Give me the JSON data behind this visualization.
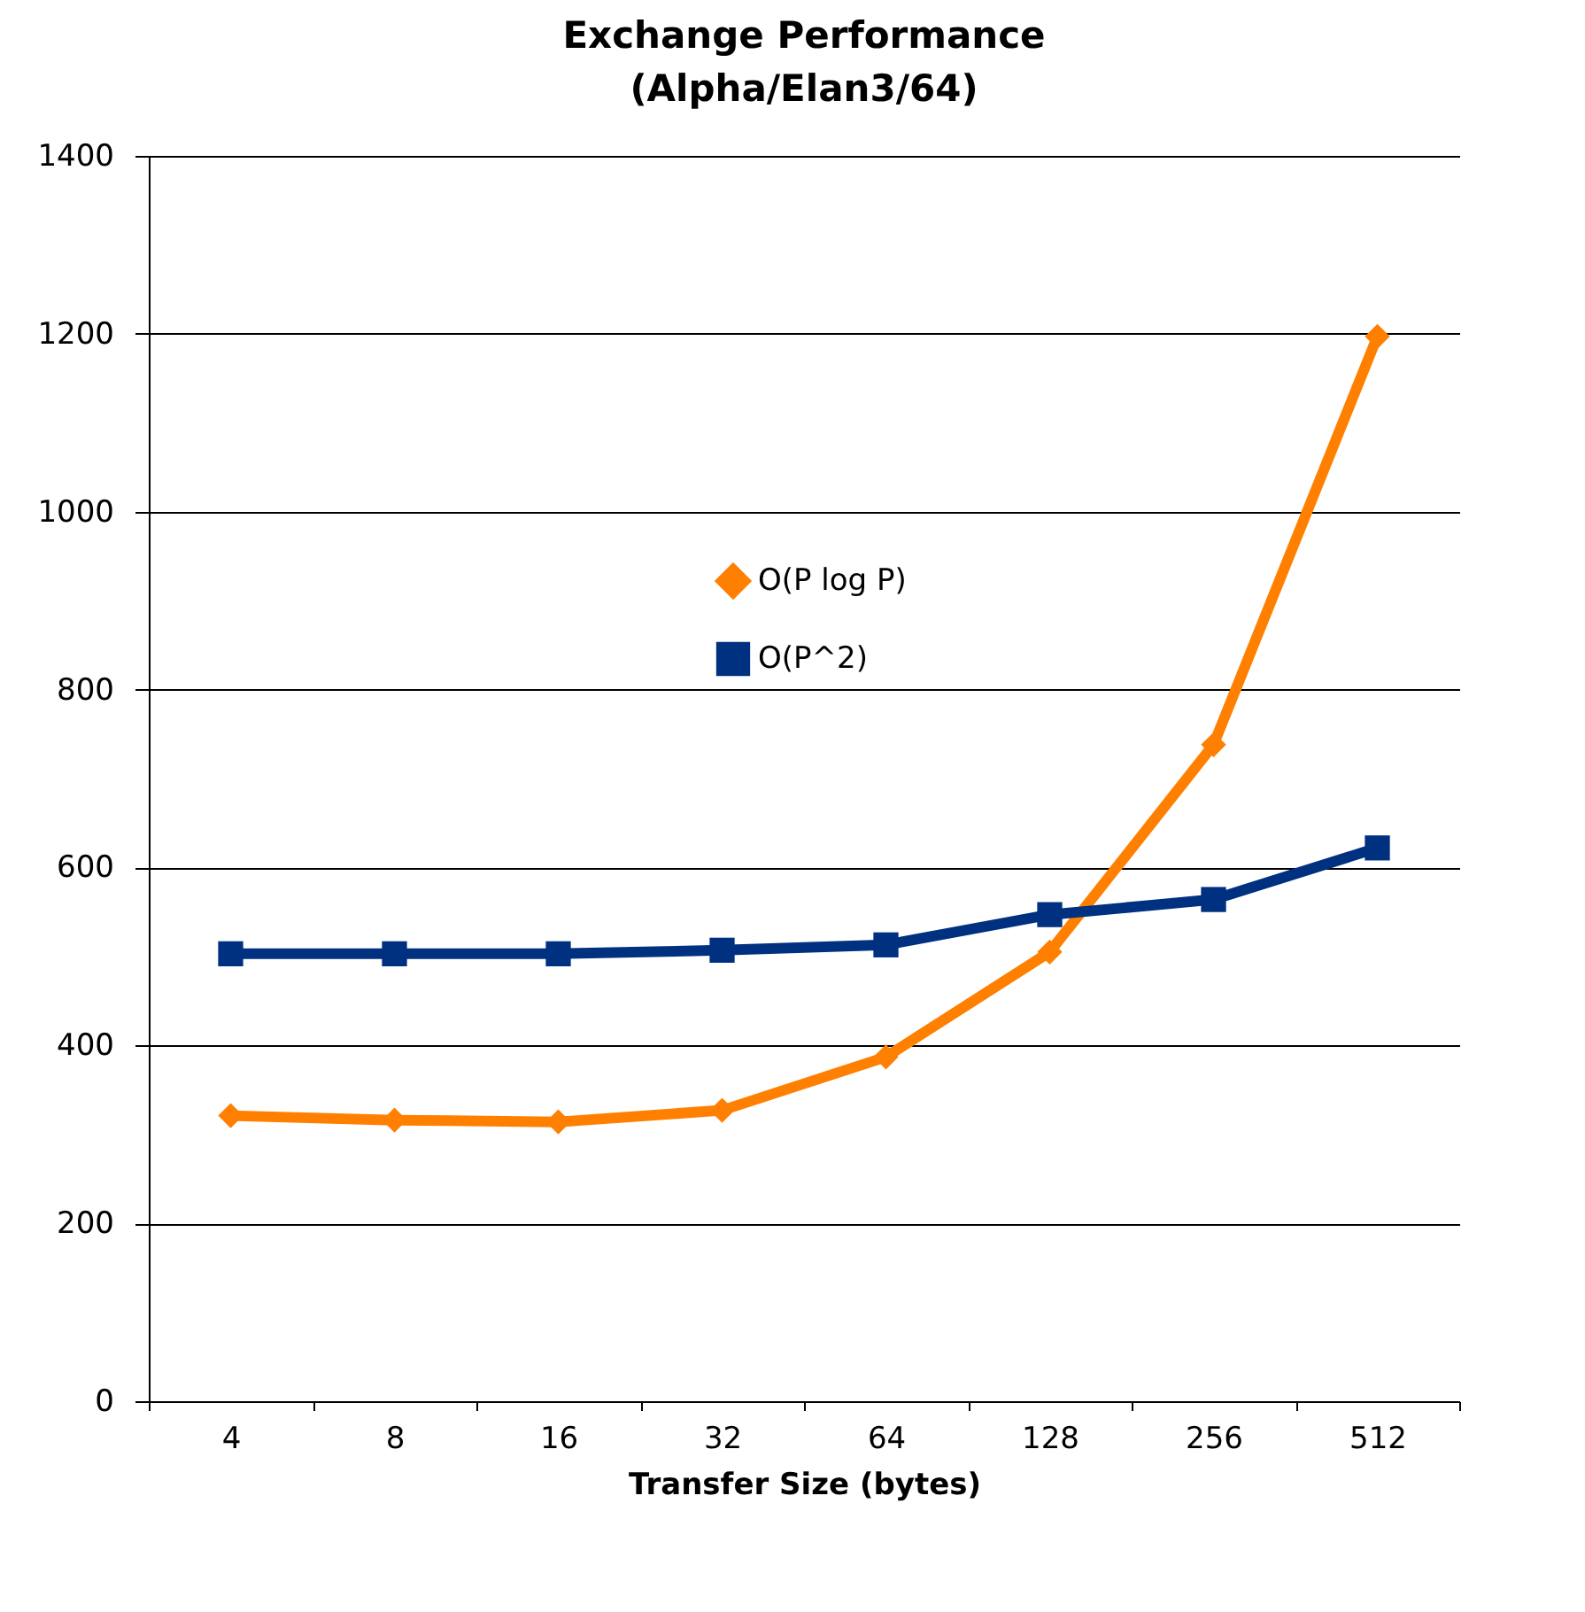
{
  "chart_data": {
    "type": "line",
    "title": [
      "Exchange Performance",
      "(Alpha/Elan3/64)"
    ],
    "xlabel": "Transfer Size (bytes)",
    "categories": [
      "4",
      "8",
      "16",
      "32",
      "64",
      "128",
      "256",
      "512"
    ],
    "series": [
      {
        "name": "O(P log P)",
        "color": "#ff8000",
        "marker": "diamond",
        "values": [
          321,
          316,
          314,
          327,
          387,
          505,
          738,
          1197
        ]
      },
      {
        "name": "O(P^2)",
        "color": "#003080",
        "marker": "square",
        "values": [
          503,
          503,
          503,
          507,
          513,
          547,
          564,
          622
        ]
      }
    ],
    "ylim": [
      0,
      1400
    ],
    "yticks": [
      0,
      200,
      400,
      600,
      800,
      1000,
      1200,
      1400
    ],
    "grid": "y",
    "legend": "top right"
  }
}
